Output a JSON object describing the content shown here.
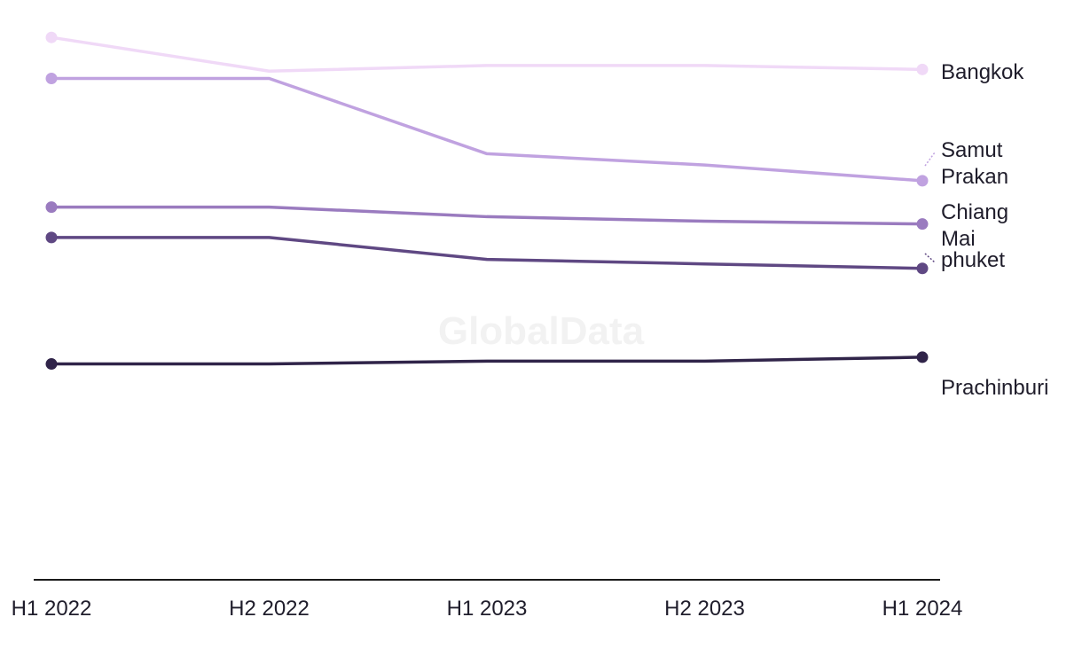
{
  "watermark": "GlobalData",
  "chart_data": {
    "type": "line",
    "title": "",
    "xlabel": "",
    "ylabel": "",
    "grid": false,
    "legend": "direct labels at line ends",
    "x": [
      "H1 2022",
      "H2 2022",
      "H1 2023",
      "H2 2023",
      "H1 2024"
    ],
    "ylim": [
      0,
      100
    ],
    "series": [
      {
        "name": "Bangkok",
        "label_lines": [
          "Bangkok"
        ],
        "color": "#f0d9f7",
        "values": [
          96.5,
          90.5,
          91.5,
          91.5,
          90.8
        ]
      },
      {
        "name": "Samut Prakan",
        "label_lines": [
          "Samut",
          "Prakan"
        ],
        "color": "#c0a2e0",
        "values": [
          89.2,
          89.2,
          75.8,
          73.8,
          71.0
        ]
      },
      {
        "name": "Chiang Mai",
        "label_lines": [
          "Chiang",
          "Mai"
        ],
        "color": "#9a7bbf",
        "values": [
          66.3,
          66.3,
          64.6,
          63.8,
          63.3
        ]
      },
      {
        "name": "phuket",
        "label_lines": [
          "phuket"
        ],
        "color": "#5f4883",
        "values": [
          60.9,
          60.9,
          57.0,
          56.2,
          55.4
        ]
      },
      {
        "name": "Prachinburi",
        "label_lines": [
          "Prachinburi"
        ],
        "color": "#302449",
        "values": [
          38.4,
          38.4,
          38.9,
          38.9,
          39.6
        ]
      }
    ]
  }
}
